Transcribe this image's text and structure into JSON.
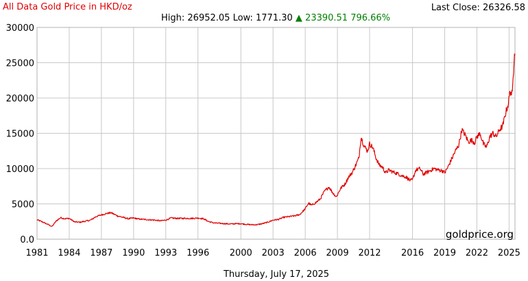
{
  "header": {
    "title": "All Data Gold Price in HKD/oz",
    "last_close_label": "Last Close:",
    "last_close_value": "26326.58",
    "high_label": "High:",
    "high_value": "26952.05",
    "low_label": "Low:",
    "low_value": "1771.30",
    "change_arrow": "▲",
    "change_value": "23390.51",
    "change_pct": "796.66%"
  },
  "footer": {
    "date": "Thursday, July 17, 2025",
    "watermark": "goldprice.org"
  },
  "colors": {
    "line": "#e00000",
    "title": "#e00000",
    "change": "#008000",
    "grid": "#c8c8c8"
  },
  "chart_data": {
    "type": "line",
    "title": "All Data Gold Price in HKD/oz",
    "xlabel": "",
    "ylabel": "",
    "xlim": [
      1981,
      2025.55
    ],
    "ylim": [
      0,
      30000
    ],
    "grid": true,
    "legend": "none",
    "x_ticks": [
      1981,
      1984,
      1987,
      1990,
      1993,
      1996,
      2000,
      2003,
      2006,
      2009,
      2012,
      2016,
      2019,
      2022,
      2025
    ],
    "y_ticks": [
      "0.0",
      "5000",
      "10000",
      "15000",
      "20000",
      "25000",
      "30000"
    ],
    "series": [
      {
        "x": [
          1981.0,
          1981.5,
          1982.0,
          1982.4,
          1982.8,
          1983.2,
          1983.6,
          1984.0,
          1984.5,
          1985.0,
          1985.5,
          1986.0,
          1986.5,
          1987.0,
          1987.5,
          1987.9,
          1988.5,
          1989.0,
          1989.5,
          1990.0,
          1990.5,
          1991.0,
          1991.5,
          1992.0,
          1992.5,
          1993.0,
          1993.5,
          1994.0,
          1994.5,
          1995.0,
          1995.5,
          1996.0,
          1996.5,
          1997.0,
          1997.5,
          1998.0,
          1998.5,
          1999.0,
          1999.5,
          2000.0,
          2000.5,
          2001.0,
          2001.5,
          2002.0,
          2002.5,
          2003.0,
          2003.5,
          2004.0,
          2004.5,
          2005.0,
          2005.5,
          2006.0,
          2006.3,
          2006.6,
          2007.0,
          2007.4,
          2007.8,
          2008.2,
          2008.6,
          2008.9,
          2009.3,
          2009.7,
          2010.0,
          2010.4,
          2010.8,
          2011.0,
          2011.2,
          2011.5,
          2011.8,
          2012.0,
          2012.3,
          2012.6,
          2012.9,
          2013.2,
          2013.5,
          2013.8,
          2014.2,
          2014.6,
          2015.0,
          2015.4,
          2015.8,
          2016.0,
          2016.3,
          2016.7,
          2017.0,
          2017.5,
          2018.0,
          2018.4,
          2018.8,
          2019.0,
          2019.3,
          2019.6,
          2020.0,
          2020.3,
          2020.6,
          2020.9,
          2021.2,
          2021.5,
          2021.8,
          2022.0,
          2022.3,
          2022.6,
          2022.9,
          2023.2,
          2023.5,
          2023.8,
          2024.1,
          2024.4,
          2024.7,
          2024.9,
          2025.1,
          2025.3,
          2025.42,
          2025.5,
          2025.54
        ],
        "y": [
          2750,
          2450,
          2100,
          1800,
          2600,
          3050,
          2900,
          2950,
          2450,
          2400,
          2550,
          2700,
          3200,
          3450,
          3650,
          3750,
          3300,
          3100,
          2900,
          3000,
          2850,
          2800,
          2750,
          2700,
          2600,
          2700,
          3000,
          2950,
          2950,
          2950,
          2950,
          3000,
          2900,
          2500,
          2300,
          2250,
          2200,
          2150,
          2200,
          2200,
          2100,
          2050,
          2050,
          2200,
          2400,
          2700,
          2800,
          3100,
          3200,
          3300,
          3500,
          4300,
          5100,
          4800,
          5200,
          5700,
          6800,
          7400,
          6500,
          6000,
          7200,
          7800,
          8700,
          9500,
          10800,
          11500,
          14500,
          13200,
          12500,
          13500,
          13000,
          11500,
          10500,
          10200,
          9400,
          9800,
          9500,
          9300,
          9000,
          8800,
          8300,
          8400,
          9800,
          10000,
          9200,
          9600,
          10000,
          9800,
          9700,
          9400,
          10200,
          11200,
          12500,
          13300,
          15500,
          14800,
          13800,
          14000,
          13700,
          14500,
          15000,
          13500,
          13000,
          14500,
          15000,
          14500,
          15500,
          16000,
          18000,
          19000,
          21000,
          20500,
          24000,
          26800,
          26300
        ]
      }
    ]
  }
}
